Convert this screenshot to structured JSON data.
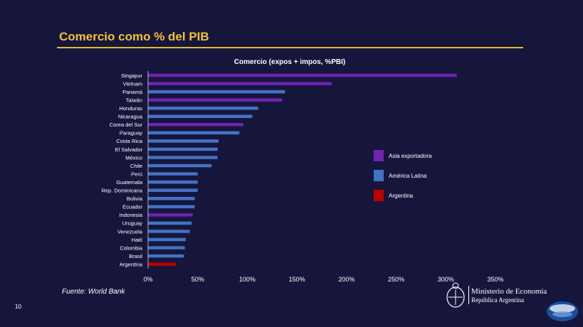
{
  "slide": {
    "title": "Comercio como % del PIB",
    "source": "Fuente: World Bank",
    "page_number": "10"
  },
  "ministry": {
    "name": "Ministerio de Economía",
    "subtitle": "República Argentina"
  },
  "colors": {
    "asia": "#6f23b3",
    "latam": "#4472c4",
    "argentina": "#c00000",
    "title": "#f2c230",
    "background": "#16163d"
  },
  "chart_data": {
    "type": "bar",
    "orientation": "horizontal",
    "title": "Comercio (expos + impos, %PBI)",
    "xlabel": "",
    "ylabel": "",
    "xlim": [
      0,
      350
    ],
    "x_ticks": [
      "0%",
      "50%",
      "100%",
      "150%",
      "200%",
      "250%",
      "300%",
      "350%"
    ],
    "grid": false,
    "legend_position": "right",
    "legend": [
      {
        "label": "Asia exportadora",
        "group": "asia"
      },
      {
        "label": "América Latina",
        "group": "latam"
      },
      {
        "label": "Argentina",
        "group": "argentina"
      }
    ],
    "categories": [
      "Singapur",
      "Vietnam",
      "Panamá",
      "Taiwán",
      "Honduras",
      "Nicaragua",
      "Corea del Sur",
      "Paraguay",
      "Costa Rica",
      "El Salvador",
      "México",
      "Chile",
      "Perú",
      "Guatemala",
      "Rep. Dominicana",
      "Bolivia",
      "Ecuador",
      "Indonesia",
      "Uruguay",
      "Venezuela",
      "Haití",
      "Colombia",
      "Brasil",
      "Argentina"
    ],
    "values": [
      311,
      185,
      138,
      135,
      111,
      105,
      96,
      92,
      71,
      70,
      70,
      64,
      50,
      50,
      50,
      47,
      47,
      45,
      44,
      42,
      38,
      37,
      36,
      28
    ],
    "groups": [
      "asia",
      "asia",
      "latam",
      "asia",
      "latam",
      "latam",
      "asia",
      "latam",
      "latam",
      "latam",
      "latam",
      "latam",
      "latam",
      "latam",
      "latam",
      "latam",
      "latam",
      "asia",
      "latam",
      "latam",
      "latam",
      "latam",
      "latam",
      "argentina"
    ]
  }
}
